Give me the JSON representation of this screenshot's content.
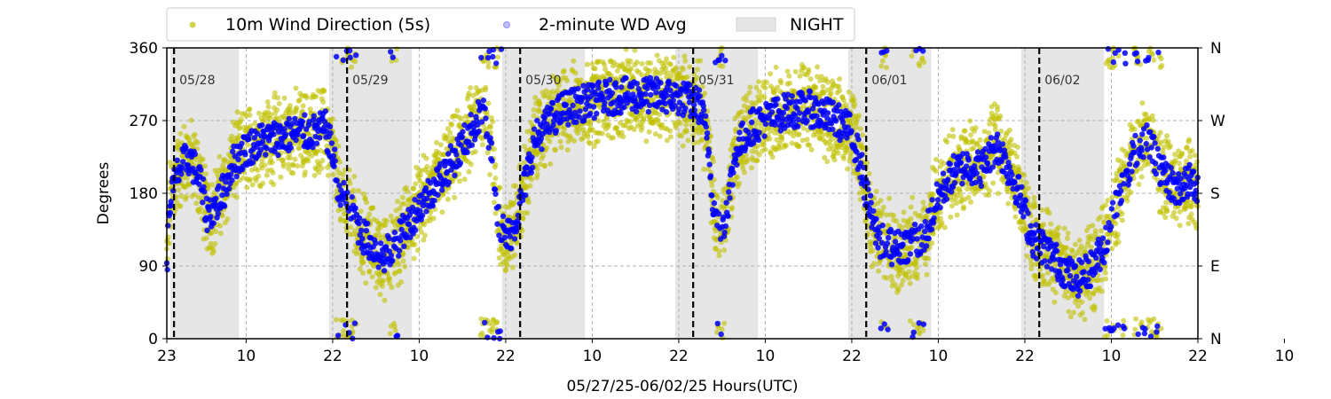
{
  "chart_data": {
    "type": "scatter",
    "title": "",
    "xlabel": "05/27/25-06/02/25  Hours(UTC)",
    "ylabel": "Degrees",
    "ylim": [
      0,
      360
    ],
    "yticks": [
      "0",
      "90",
      "180",
      "270",
      "360"
    ],
    "y2ticks": [
      "N",
      "E",
      "S",
      "W",
      "N"
    ],
    "xticks": [
      "23",
      "10",
      "22",
      "10",
      "22",
      "10",
      "22",
      "10",
      "22",
      "10",
      "22",
      "10",
      "22",
      "10"
    ],
    "grid": true,
    "legend": {
      "placement": "top-left",
      "entries": [
        "10m Wind Direction (5s)",
        "2-minute WD Avg",
        "NIGHT"
      ]
    },
    "day_labels": [
      "05/28",
      "05/29",
      "05/30",
      "05/31",
      "06/01",
      "06/02"
    ],
    "colors": {
      "raw": "#bfbf00",
      "avg": "#0000ff",
      "night": "#e6e6e6",
      "grid": "#b0b0b0"
    },
    "series": [
      {
        "name": "10m Wind Direction (5s)",
        "trend": [
          [
            0.0,
            90
          ],
          [
            0.4,
            170
          ],
          [
            1.5,
            205
          ],
          [
            3,
            225
          ],
          [
            4.5,
            200
          ],
          [
            5.5,
            155
          ],
          [
            6.5,
            160
          ],
          [
            8,
            185
          ],
          [
            9,
            215
          ],
          [
            11,
            235
          ],
          [
            13,
            245
          ],
          [
            16,
            250
          ],
          [
            18,
            255
          ],
          [
            20,
            255
          ],
          [
            22,
            260
          ],
          [
            23,
            230
          ],
          [
            24,
            175
          ],
          [
            25,
            170
          ],
          [
            26,
            150
          ],
          [
            27,
            130
          ],
          [
            28,
            120
          ],
          [
            29,
            110
          ],
          [
            30,
            100
          ],
          [
            32,
            120
          ],
          [
            34,
            150
          ],
          [
            36,
            175
          ],
          [
            38,
            200
          ],
          [
            40,
            225
          ],
          [
            42,
            255
          ],
          [
            44,
            285
          ],
          [
            45,
            235
          ],
          [
            46,
            150
          ],
          [
            47,
            125
          ],
          [
            48,
            135
          ],
          [
            49,
            165
          ],
          [
            51,
            245
          ],
          [
            53,
            268
          ],
          [
            55,
            285
          ],
          [
            58,
            292
          ],
          [
            62,
            300
          ],
          [
            66,
            302
          ],
          [
            70,
            300
          ],
          [
            72,
            296
          ],
          [
            74,
            288
          ],
          [
            75,
            245
          ],
          [
            76,
            150
          ],
          [
            77,
            135
          ],
          [
            78,
            180
          ],
          [
            79,
            235
          ],
          [
            81,
            262
          ],
          [
            83,
            272
          ],
          [
            86,
            282
          ],
          [
            89,
            285
          ],
          [
            91,
            278
          ],
          [
            93,
            270
          ],
          [
            95,
            255
          ],
          [
            96,
            225
          ],
          [
            97,
            180
          ],
          [
            98,
            140
          ],
          [
            99,
            120
          ],
          [
            101,
            112
          ],
          [
            103,
            118
          ],
          [
            105,
            125
          ],
          [
            107,
            175
          ],
          [
            109,
            205
          ],
          [
            111,
            215
          ],
          [
            113,
            210
          ],
          [
            115,
            240
          ],
          [
            116,
            225
          ],
          [
            118,
            185
          ],
          [
            119,
            155
          ],
          [
            120,
            125
          ],
          [
            122,
            110
          ],
          [
            124,
            90
          ],
          [
            126,
            72
          ],
          [
            128,
            85
          ],
          [
            130,
            115
          ],
          [
            132,
            175
          ],
          [
            134,
            230
          ],
          [
            136,
            250
          ],
          [
            138,
            205
          ],
          [
            140,
            185
          ],
          [
            142,
            195
          ],
          [
            143,
            190
          ]
        ]
      },
      {
        "name": "2-minute WD Avg",
        "trend": [
          [
            0.0,
            90
          ],
          [
            0.4,
            170
          ],
          [
            1.5,
            205
          ],
          [
            3,
            225
          ],
          [
            4.5,
            200
          ],
          [
            5.5,
            155
          ],
          [
            6.5,
            160
          ],
          [
            8,
            185
          ],
          [
            9,
            215
          ],
          [
            11,
            235
          ],
          [
            13,
            245
          ],
          [
            16,
            250
          ],
          [
            18,
            255
          ],
          [
            20,
            255
          ],
          [
            22,
            260
          ],
          [
            23,
            230
          ],
          [
            24,
            175
          ],
          [
            25,
            170
          ],
          [
            26,
            150
          ],
          [
            27,
            130
          ],
          [
            28,
            120
          ],
          [
            29,
            110
          ],
          [
            30,
            100
          ],
          [
            32,
            120
          ],
          [
            34,
            150
          ],
          [
            36,
            175
          ],
          [
            38,
            200
          ],
          [
            40,
            225
          ],
          [
            42,
            255
          ],
          [
            44,
            285
          ],
          [
            45,
            235
          ],
          [
            46,
            150
          ],
          [
            47,
            125
          ],
          [
            48,
            135
          ],
          [
            49,
            165
          ],
          [
            51,
            245
          ],
          [
            53,
            268
          ],
          [
            55,
            285
          ],
          [
            58,
            292
          ],
          [
            62,
            300
          ],
          [
            66,
            302
          ],
          [
            70,
            300
          ],
          [
            72,
            296
          ],
          [
            74,
            288
          ],
          [
            75,
            245
          ],
          [
            76,
            150
          ],
          [
            77,
            135
          ],
          [
            78,
            180
          ],
          [
            79,
            235
          ],
          [
            81,
            262
          ],
          [
            83,
            272
          ],
          [
            86,
            282
          ],
          [
            89,
            285
          ],
          [
            91,
            278
          ],
          [
            93,
            270
          ],
          [
            95,
            255
          ],
          [
            96,
            225
          ],
          [
            97,
            180
          ],
          [
            98,
            140
          ],
          [
            99,
            120
          ],
          [
            101,
            112
          ],
          [
            103,
            118
          ],
          [
            105,
            125
          ],
          [
            107,
            175
          ],
          [
            109,
            205
          ],
          [
            111,
            215
          ],
          [
            113,
            210
          ],
          [
            115,
            240
          ],
          [
            116,
            225
          ],
          [
            118,
            185
          ],
          [
            119,
            155
          ],
          [
            120,
            125
          ],
          [
            122,
            110
          ],
          [
            124,
            90
          ],
          [
            126,
            72
          ],
          [
            128,
            85
          ],
          [
            130,
            115
          ],
          [
            132,
            175
          ],
          [
            134,
            230
          ],
          [
            136,
            250
          ],
          [
            138,
            205
          ],
          [
            140,
            185
          ],
          [
            142,
            195
          ],
          [
            143,
            190
          ]
        ]
      }
    ],
    "wrap_excursions": [
      [
        23.5,
        26.5
      ],
      [
        31,
        32
      ],
      [
        43.5,
        46.5
      ],
      [
        76,
        77.5
      ],
      [
        99,
        100
      ],
      [
        103,
        105
      ],
      [
        130,
        133
      ],
      [
        134,
        138
      ]
    ],
    "night_periods": [
      [
        0.5,
        10
      ],
      [
        22.5,
        34
      ],
      [
        46.5,
        58
      ],
      [
        70.5,
        82
      ],
      [
        94.5,
        106
      ],
      [
        118.5,
        130
      ]
    ],
    "midnight_hours": [
      1,
      25,
      49,
      73,
      97,
      121
    ]
  }
}
